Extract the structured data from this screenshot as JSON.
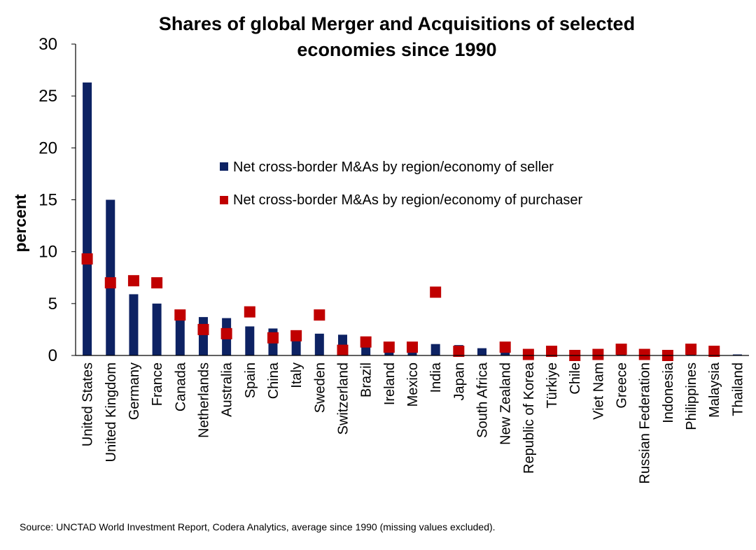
{
  "chart_data": {
    "type": "bar",
    "title_lines": [
      "Shares of global Merger and Acquisitions of selected",
      "economies since 1990"
    ],
    "ylabel": "percent",
    "xlabel": "",
    "ylim": [
      0,
      30
    ],
    "yticks": [
      "0",
      "5",
      "10",
      "15",
      "20",
      "25",
      "30"
    ],
    "grid": false,
    "legend_position": "center-right",
    "categories": [
      "United States",
      "United Kingdom",
      "Germany",
      "France",
      "Canada",
      "Netherlands",
      "Australia",
      "Spain",
      "China",
      "Italy",
      "Sweden",
      "Switzerland",
      "Brazil",
      "Ireland",
      "Mexico",
      "India",
      "Japan",
      "South Africa",
      "New Zealand",
      "Republic of Korea",
      "Türkiye",
      "Chile",
      "Viet Nam",
      "Greece",
      "Russian Federation",
      "Indonesia",
      "Philippines",
      "Malaysia",
      "Thailand"
    ],
    "series": [
      {
        "name": "Net cross-border M&As by region/economy of seller",
        "render": "bar",
        "color": "#0d2263",
        "values": [
          26.3,
          15.0,
          5.9,
          5.0,
          3.7,
          3.7,
          3.6,
          2.8,
          2.6,
          1.6,
          2.1,
          2.0,
          1.0,
          0.6,
          0.5,
          1.1,
          1.0,
          0.7,
          0.3,
          0.1,
          0.2,
          0.1,
          0.1,
          0.2,
          0.1,
          0.1,
          0.2,
          0.2,
          0.1
        ]
      },
      {
        "name": "Net cross-border M&As by region/economy of purchaser",
        "render": "marker",
        "color": "#c00000",
        "values": [
          9.3,
          7.0,
          7.2,
          7.0,
          3.9,
          2.5,
          2.1,
          4.2,
          1.7,
          1.9,
          3.9,
          0.5,
          1.3,
          0.8,
          0.8,
          6.1,
          0.4,
          null,
          0.8,
          0.1,
          0.4,
          0.0,
          0.1,
          0.6,
          0.1,
          0.0,
          0.6,
          0.4,
          null
        ]
      }
    ],
    "source": "Source: UNCTAD World Investment Report, Codera Analytics, average since 1990 (missing values excluded)."
  }
}
